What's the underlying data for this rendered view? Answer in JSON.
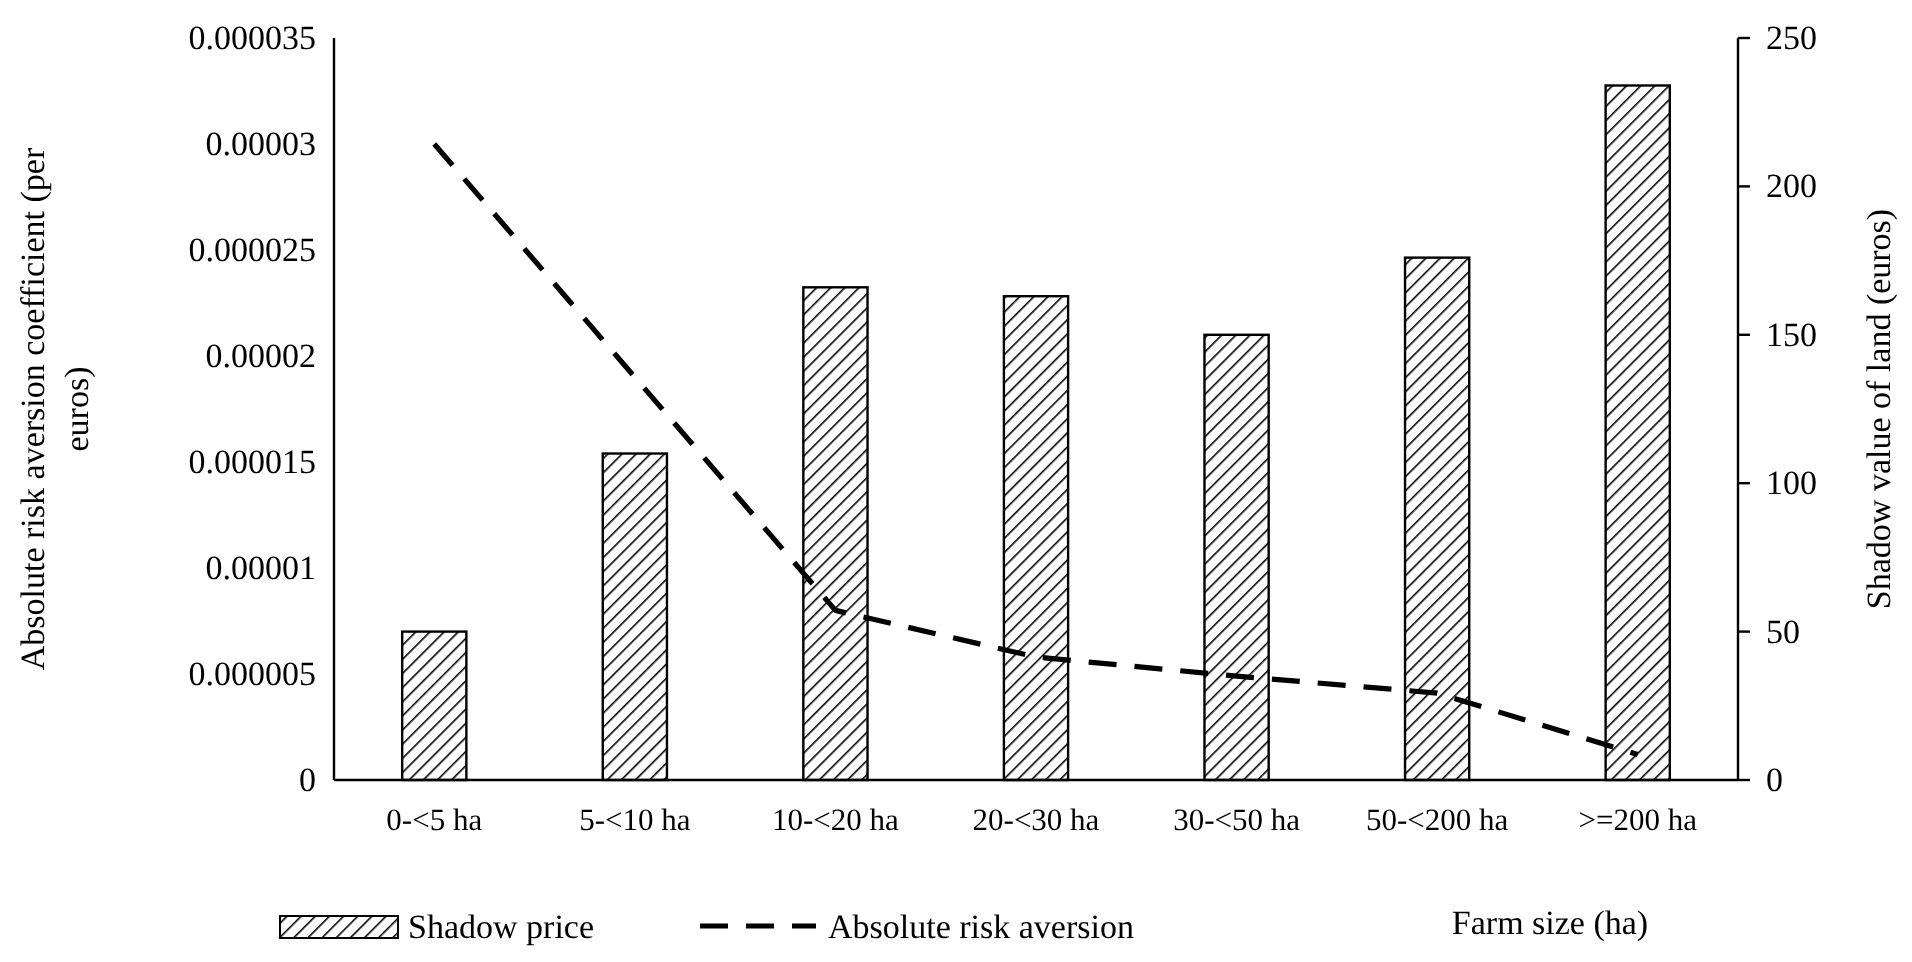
{
  "chart_data": {
    "type": "bar",
    "xlabel": "Farm size (ha)",
    "ylabel": "Absolute risk aversion coefficient (per euros)",
    "y2label": "Shadow value of land (euros)",
    "categories": [
      "0-<5 ha",
      "5-<10 ha",
      "10-<20 ha",
      "20-<30 ha",
      "30-<50 ha",
      "50-<200 ha",
      ">=200 ha"
    ],
    "series": [
      {
        "name": "Shadow price",
        "axis": "y2",
        "color": "#000000",
        "values": [
          50,
          110,
          166,
          163,
          150,
          176,
          234
        ]
      },
      {
        "name": "Absolute risk aversion",
        "type": "line",
        "axis": "y",
        "color": "#000000",
        "line_style": "dashed",
        "values": [
          3e-05,
          1.9e-05,
          8e-06,
          5.8e-06,
          4.9e-06,
          4.1e-06,
          1.2e-06
        ]
      }
    ],
    "ylim": [
      0,
      3.5e-05
    ],
    "yticks": [
      {
        "value": 0,
        "label": "0"
      },
      {
        "value": 5e-06,
        "label": "0.000005"
      },
      {
        "value": 1e-05,
        "label": "0.00001"
      },
      {
        "value": 1.5e-05,
        "label": "0.000015"
      },
      {
        "value": 2e-05,
        "label": "0.00002"
      },
      {
        "value": 2.5e-05,
        "label": "0.000025"
      },
      {
        "value": 3e-05,
        "label": "0.00003"
      },
      {
        "value": 3.5e-05,
        "label": "0.000035"
      }
    ],
    "y2lim": [
      0,
      250
    ],
    "y2ticks": [
      0,
      50,
      100,
      150,
      200,
      250
    ],
    "legend": "bottom",
    "grid": false
  }
}
